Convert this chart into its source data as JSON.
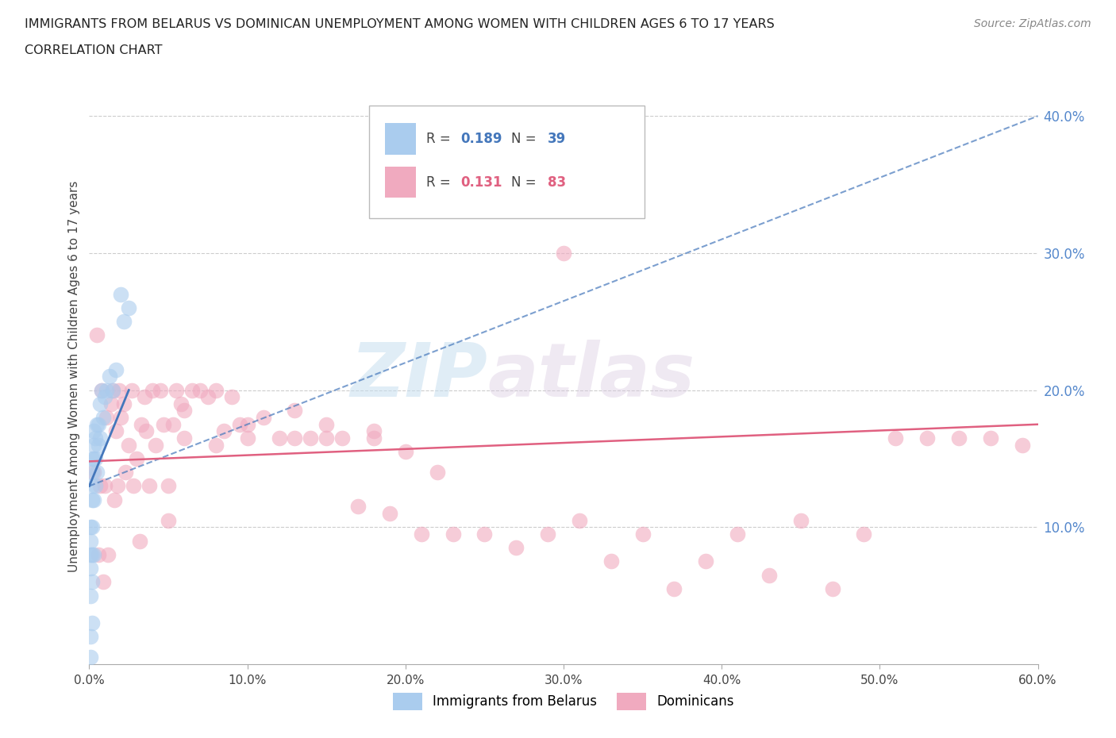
{
  "title_line1": "IMMIGRANTS FROM BELARUS VS DOMINICAN UNEMPLOYMENT AMONG WOMEN WITH CHILDREN AGES 6 TO 17 YEARS",
  "title_line2": "CORRELATION CHART",
  "source": "Source: ZipAtlas.com",
  "ylabel": "Unemployment Among Women with Children Ages 6 to 17 years",
  "xlim": [
    0.0,
    0.6
  ],
  "ylim": [
    0.0,
    0.42
  ],
  "xticks": [
    0.0,
    0.1,
    0.2,
    0.3,
    0.4,
    0.5,
    0.6
  ],
  "xticklabels": [
    "0.0%",
    "10.0%",
    "20.0%",
    "30.0%",
    "40.0%",
    "50.0%",
    "60.0%"
  ],
  "yticks": [
    0.1,
    0.2,
    0.3,
    0.4
  ],
  "yticklabels": [
    "10.0%",
    "20.0%",
    "30.0%",
    "40.0%"
  ],
  "watermark_zip": "ZIP",
  "watermark_atlas": "atlas",
  "belarus_color": "#aaccee",
  "dominican_color": "#f0aabf",
  "belarus_line_color": "#4477bb",
  "dominican_line_color": "#e06080",
  "scatter_size": 200,
  "scatter_alpha": 0.6,
  "belarus_R": "0.189",
  "belarus_N": "39",
  "dominican_R": "0.131",
  "dominican_N": "83",
  "belarus_x": [
    0.001,
    0.001,
    0.001,
    0.001,
    0.001,
    0.001,
    0.001,
    0.002,
    0.002,
    0.002,
    0.002,
    0.002,
    0.002,
    0.002,
    0.002,
    0.003,
    0.003,
    0.003,
    0.003,
    0.003,
    0.004,
    0.004,
    0.004,
    0.005,
    0.005,
    0.006,
    0.006,
    0.007,
    0.007,
    0.008,
    0.009,
    0.01,
    0.011,
    0.013,
    0.015,
    0.017,
    0.02,
    0.022,
    0.025
  ],
  "belarus_y": [
    0.005,
    0.02,
    0.05,
    0.07,
    0.08,
    0.09,
    0.1,
    0.03,
    0.06,
    0.08,
    0.1,
    0.12,
    0.13,
    0.14,
    0.15,
    0.08,
    0.12,
    0.15,
    0.16,
    0.17,
    0.13,
    0.15,
    0.165,
    0.14,
    0.175,
    0.16,
    0.175,
    0.165,
    0.19,
    0.2,
    0.18,
    0.195,
    0.2,
    0.21,
    0.2,
    0.215,
    0.27,
    0.25,
    0.26
  ],
  "dominican_x": [
    0.003,
    0.005,
    0.006,
    0.007,
    0.008,
    0.009,
    0.01,
    0.011,
    0.012,
    0.014,
    0.015,
    0.016,
    0.017,
    0.018,
    0.019,
    0.02,
    0.022,
    0.023,
    0.025,
    0.027,
    0.028,
    0.03,
    0.032,
    0.033,
    0.035,
    0.036,
    0.038,
    0.04,
    0.042,
    0.045,
    0.047,
    0.05,
    0.053,
    0.055,
    0.058,
    0.06,
    0.065,
    0.07,
    0.075,
    0.08,
    0.085,
    0.09,
    0.095,
    0.1,
    0.11,
    0.12,
    0.13,
    0.14,
    0.15,
    0.16,
    0.17,
    0.18,
    0.19,
    0.2,
    0.21,
    0.22,
    0.23,
    0.25,
    0.27,
    0.29,
    0.31,
    0.33,
    0.35,
    0.37,
    0.39,
    0.41,
    0.43,
    0.45,
    0.47,
    0.49,
    0.51,
    0.53,
    0.55,
    0.57,
    0.59,
    0.05,
    0.06,
    0.08,
    0.1,
    0.13,
    0.15,
    0.18,
    0.3
  ],
  "dominican_y": [
    0.14,
    0.24,
    0.08,
    0.13,
    0.2,
    0.06,
    0.13,
    0.18,
    0.08,
    0.19,
    0.2,
    0.12,
    0.17,
    0.13,
    0.2,
    0.18,
    0.19,
    0.14,
    0.16,
    0.2,
    0.13,
    0.15,
    0.09,
    0.175,
    0.195,
    0.17,
    0.13,
    0.2,
    0.16,
    0.2,
    0.175,
    0.13,
    0.175,
    0.2,
    0.19,
    0.185,
    0.2,
    0.2,
    0.195,
    0.2,
    0.17,
    0.195,
    0.175,
    0.165,
    0.18,
    0.165,
    0.185,
    0.165,
    0.175,
    0.165,
    0.115,
    0.17,
    0.11,
    0.155,
    0.095,
    0.14,
    0.095,
    0.095,
    0.085,
    0.095,
    0.105,
    0.075,
    0.095,
    0.055,
    0.075,
    0.095,
    0.065,
    0.105,
    0.055,
    0.095,
    0.165,
    0.165,
    0.165,
    0.165,
    0.16,
    0.105,
    0.165,
    0.16,
    0.175,
    0.165,
    0.165,
    0.165,
    0.3
  ]
}
